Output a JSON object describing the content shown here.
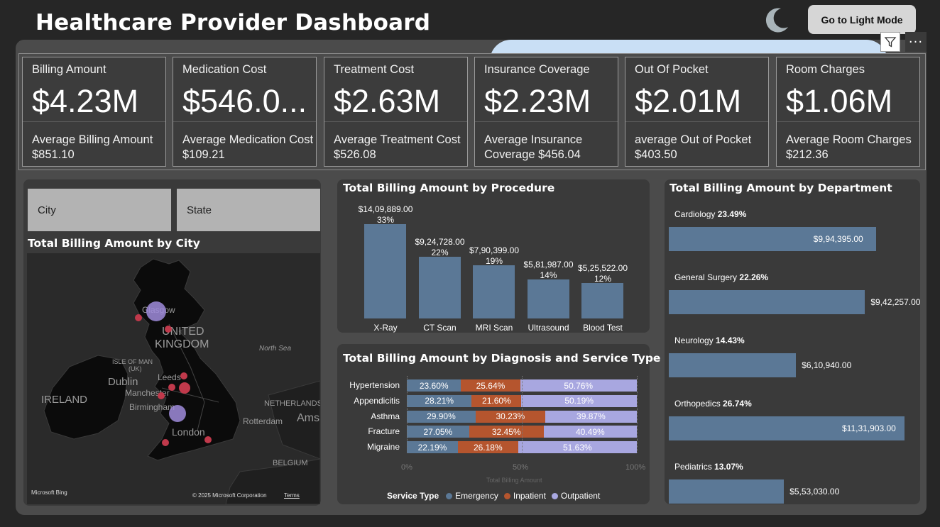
{
  "header": {
    "title": "Healthcare Provider Dashboard",
    "mode_button_label": "Go to Light Mode",
    "more_label": "···"
  },
  "colors": {
    "background": "#262626",
    "panel": "#4b4b4b",
    "card": "#3a3a3a",
    "emergency": "#5b7896",
    "inpatient": "#b5552e",
    "outpatient": "#a8a7e0"
  },
  "icons": [
    "moon-icon",
    "filter-icon",
    "more-options-icon"
  ],
  "kpis": [
    {
      "label": "Billing Amount",
      "value": "$4.23M",
      "sub": "Average Billing Amount $851.10"
    },
    {
      "label": "Medication Cost",
      "value": "$546.0...",
      "sub": "Average Medication Cost $109.21"
    },
    {
      "label": "Treatment Cost",
      "value": "$2.63M",
      "sub": "Average Treatment Cost $526.08"
    },
    {
      "label": "Insurance Coverage",
      "value": "$2.23M",
      "sub": "Average Insurance Coverage $456.04"
    },
    {
      "label": "Out Of Pocket",
      "value": "$2.01M",
      "sub": "average Out of Pocket $403.50"
    },
    {
      "label": "Room Charges",
      "value": "$1.06M",
      "sub": "Average Room Charges $212.36"
    }
  ],
  "slicers": {
    "city": "City",
    "state": "State"
  },
  "map_card": {
    "title": "Total Billing Amount by City",
    "labels": {
      "glasgow": "Glasgow",
      "united": "UNITED",
      "kingdom": "KINGDOM",
      "north_sea": "North Sea",
      "isle_of_man": "ISLE OF MAN",
      "uk": "(UK)",
      "dublin": "Dublin",
      "leeds": "Leeds",
      "manchester": "Manchester",
      "ireland": "IRELAND",
      "netherlands": "NETHERLANDS",
      "birmingham": "Birmingham",
      "rotterdam": "Rotterdam",
      "ams": "Ams",
      "london": "London",
      "belgium": "BELGIUM"
    },
    "attribution": "Microsoft Bing",
    "copyright": "© 2025 Microsoft Corporation",
    "terms": "Terms"
  },
  "procedure_chart_title": "Total Billing Amount by Procedure",
  "diagnosis_chart_title": "Total Billing Amount by Diagnosis and Service Type",
  "department_chart_title": "Total Billing Amount by Department",
  "chart_data": [
    {
      "type": "bar",
      "title": "Total Billing Amount by Procedure",
      "categories": [
        "X-Ray",
        "CT Scan",
        "MRI Scan",
        "Ultrasound",
        "Blood Test"
      ],
      "values": [
        1409889,
        924728,
        790399,
        581987,
        525522
      ],
      "value_labels": [
        "$14,09,889.00",
        "$9,24,728.00",
        "$7,90,399.00",
        "$5,81,987.00",
        "$5,25,522.00"
      ],
      "percent_labels": [
        "33%",
        "22%",
        "19%",
        "14%",
        "12%"
      ]
    },
    {
      "type": "bar",
      "orientation": "horizontal-stacked-100",
      "title": "Total Billing Amount by Diagnosis and Service Type",
      "categories": [
        "Hypertension",
        "Appendicitis",
        "Asthma",
        "Fracture",
        "Migraine"
      ],
      "series": [
        {
          "name": "Emergency",
          "values": [
            23.6,
            28.21,
            29.9,
            27.05,
            22.19
          ],
          "labels": [
            "23.60%",
            "28.21%",
            "29.90%",
            "27.05%",
            "22.19%"
          ]
        },
        {
          "name": "Inpatient",
          "values": [
            25.64,
            21.6,
            30.23,
            32.45,
            26.18
          ],
          "labels": [
            "25.64%",
            "21.60%",
            "30.23%",
            "32.45%",
            "26.18%"
          ]
        },
        {
          "name": "Outpatient",
          "values": [
            50.76,
            50.19,
            39.87,
            40.49,
            51.63
          ],
          "labels": [
            "50.76%",
            "50.19%",
            "39.87%",
            "40.49%",
            "51.63%"
          ]
        }
      ],
      "x_ticks": [
        "0%",
        "50%",
        "100%"
      ],
      "xlabel": "Total Billing Amount",
      "legend_title": "Service Type",
      "legend_position": "bottom"
    },
    {
      "type": "bar",
      "orientation": "horizontal",
      "title": "Total Billing Amount by Department",
      "categories": [
        "Cardiology",
        "General Surgery",
        "Neurology",
        "Orthopedics",
        "Pediatrics"
      ],
      "percent_labels": [
        "23.49%",
        "22.26%",
        "14.43%",
        "26.74%",
        "13.07%"
      ],
      "values": [
        994395,
        942257,
        610940,
        1131903,
        553030
      ],
      "value_labels": [
        "$9,94,395.00",
        "$9,42,257.00",
        "$6,10,940.00",
        "$11,31,903.00",
        "$5,53,030.00"
      ]
    }
  ]
}
